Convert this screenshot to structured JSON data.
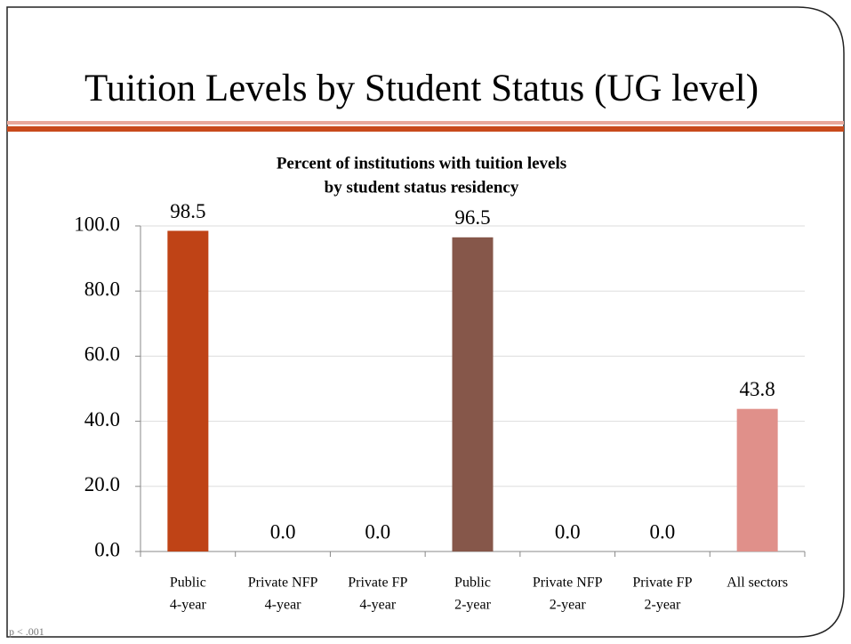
{
  "slide_title": "Tuition Levels by Student Status (UG level)",
  "footnote": "p < .001",
  "chart_data": {
    "type": "bar",
    "title": [
      "Percent of institutions with tuition levels",
      "by student  status residency"
    ],
    "categories": [
      [
        "Public",
        "4-year"
      ],
      [
        "Private NFP",
        "4-year"
      ],
      [
        "Private FP",
        "4-year"
      ],
      [
        "Public",
        "2-year"
      ],
      [
        "Private NFP",
        "2-year"
      ],
      [
        "Private FP",
        "2-year"
      ],
      [
        "All sectors"
      ]
    ],
    "values": [
      98.5,
      0,
      0,
      96.5,
      0,
      0,
      43.8
    ],
    "value_labels": [
      "98.5",
      "0.0",
      "0.0",
      "96.5",
      "0.0",
      "0.0",
      "43.8"
    ],
    "colors": [
      "#bf4316",
      "#bf4316",
      "#bf4316",
      "#86574a",
      "#86574a",
      "#86574a",
      "#e0908a"
    ],
    "ylim": [
      0,
      100
    ],
    "yticks": [
      {
        "value": 0,
        "label": "0.0"
      },
      {
        "value": 20,
        "label": "20.0"
      },
      {
        "value": 40,
        "label": "40.0"
      },
      {
        "value": 60,
        "label": "60.0"
      },
      {
        "value": 80,
        "label": "80.0"
      },
      {
        "value": 100,
        "label": "100.0"
      }
    ],
    "grid": true
  }
}
